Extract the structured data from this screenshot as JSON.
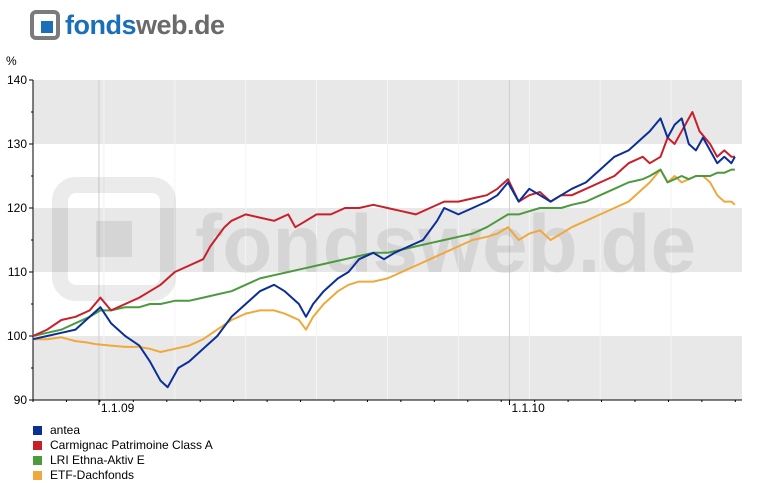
{
  "brand": {
    "fonds": "fonds",
    "web": "web.de"
  },
  "watermark": "fondsweb.de",
  "chart_data": {
    "type": "line",
    "ylabel": "%",
    "ylim": [
      90,
      140
    ],
    "yticks": [
      90,
      100,
      110,
      120,
      130,
      140
    ],
    "xticks": [
      {
        "label": "1.1.09",
        "t": 0.093
      },
      {
        "label": "1.1.10",
        "t": 0.672
      }
    ],
    "grid": true,
    "legend": "bottom-left",
    "series": [
      {
        "name": "antea",
        "color": "#0b2f96",
        "points": [
          [
            0,
            99.5
          ],
          [
            0.02,
            100
          ],
          [
            0.04,
            100.5
          ],
          [
            0.06,
            101
          ],
          [
            0.08,
            103
          ],
          [
            0.095,
            104.5
          ],
          [
            0.11,
            102
          ],
          [
            0.13,
            100
          ],
          [
            0.15,
            98.5
          ],
          [
            0.165,
            96
          ],
          [
            0.18,
            93
          ],
          [
            0.19,
            92
          ],
          [
            0.205,
            95
          ],
          [
            0.22,
            96
          ],
          [
            0.24,
            98
          ],
          [
            0.26,
            100
          ],
          [
            0.28,
            103
          ],
          [
            0.3,
            105
          ],
          [
            0.32,
            107
          ],
          [
            0.34,
            108
          ],
          [
            0.355,
            107
          ],
          [
            0.365,
            106
          ],
          [
            0.375,
            105
          ],
          [
            0.385,
            103
          ],
          [
            0.395,
            105
          ],
          [
            0.41,
            107
          ],
          [
            0.43,
            109
          ],
          [
            0.445,
            110
          ],
          [
            0.46,
            112
          ],
          [
            0.48,
            113
          ],
          [
            0.495,
            112
          ],
          [
            0.51,
            113
          ],
          [
            0.53,
            114
          ],
          [
            0.55,
            115
          ],
          [
            0.57,
            118
          ],
          [
            0.58,
            120
          ],
          [
            0.6,
            119
          ],
          [
            0.62,
            120
          ],
          [
            0.64,
            121
          ],
          [
            0.655,
            122
          ],
          [
            0.67,
            124
          ],
          [
            0.685,
            121
          ],
          [
            0.7,
            123
          ],
          [
            0.715,
            122
          ],
          [
            0.73,
            121
          ],
          [
            0.745,
            122
          ],
          [
            0.76,
            123
          ],
          [
            0.78,
            124
          ],
          [
            0.8,
            126
          ],
          [
            0.82,
            128
          ],
          [
            0.84,
            129
          ],
          [
            0.86,
            131
          ],
          [
            0.87,
            132
          ],
          [
            0.885,
            134
          ],
          [
            0.895,
            131
          ],
          [
            0.905,
            133
          ],
          [
            0.915,
            134
          ],
          [
            0.925,
            130
          ],
          [
            0.935,
            129
          ],
          [
            0.945,
            131
          ],
          [
            0.955,
            129
          ],
          [
            0.965,
            127
          ],
          [
            0.975,
            128
          ],
          [
            0.985,
            127
          ],
          [
            0.99,
            128
          ]
        ]
      },
      {
        "name": "Carmignac Patrimoine Class A",
        "color": "#c8202b",
        "points": [
          [
            0,
            100
          ],
          [
            0.02,
            101
          ],
          [
            0.04,
            102.5
          ],
          [
            0.06,
            103
          ],
          [
            0.08,
            104
          ],
          [
            0.095,
            106
          ],
          [
            0.11,
            104
          ],
          [
            0.13,
            105
          ],
          [
            0.15,
            106
          ],
          [
            0.165,
            107
          ],
          [
            0.18,
            108
          ],
          [
            0.2,
            110
          ],
          [
            0.22,
            111
          ],
          [
            0.24,
            112
          ],
          [
            0.25,
            114
          ],
          [
            0.27,
            117
          ],
          [
            0.28,
            118
          ],
          [
            0.3,
            119
          ],
          [
            0.32,
            118.5
          ],
          [
            0.34,
            118
          ],
          [
            0.36,
            119
          ],
          [
            0.37,
            117
          ],
          [
            0.385,
            118
          ],
          [
            0.4,
            119
          ],
          [
            0.42,
            119
          ],
          [
            0.44,
            120
          ],
          [
            0.46,
            120
          ],
          [
            0.48,
            120.5
          ],
          [
            0.5,
            120
          ],
          [
            0.52,
            119.5
          ],
          [
            0.54,
            119
          ],
          [
            0.56,
            120
          ],
          [
            0.58,
            121
          ],
          [
            0.6,
            121
          ],
          [
            0.62,
            121.5
          ],
          [
            0.64,
            122
          ],
          [
            0.655,
            123
          ],
          [
            0.67,
            124.5
          ],
          [
            0.685,
            121
          ],
          [
            0.7,
            122
          ],
          [
            0.715,
            122.5
          ],
          [
            0.73,
            121
          ],
          [
            0.745,
            122
          ],
          [
            0.76,
            122
          ],
          [
            0.78,
            123
          ],
          [
            0.8,
            124
          ],
          [
            0.82,
            125
          ],
          [
            0.84,
            127
          ],
          [
            0.86,
            128
          ],
          [
            0.87,
            127
          ],
          [
            0.885,
            128
          ],
          [
            0.895,
            131
          ],
          [
            0.905,
            130
          ],
          [
            0.915,
            132
          ],
          [
            0.925,
            134
          ],
          [
            0.93,
            135
          ],
          [
            0.94,
            132
          ],
          [
            0.955,
            130
          ],
          [
            0.965,
            128
          ],
          [
            0.975,
            129
          ],
          [
            0.985,
            128
          ],
          [
            0.99,
            128
          ]
        ]
      },
      {
        "name": "LRI Ethna-Aktiv E",
        "color": "#4c9a3e",
        "points": [
          [
            0,
            100
          ],
          [
            0.02,
            100.5
          ],
          [
            0.04,
            101
          ],
          [
            0.06,
            102
          ],
          [
            0.08,
            103
          ],
          [
            0.095,
            104
          ],
          [
            0.11,
            104
          ],
          [
            0.13,
            104.5
          ],
          [
            0.15,
            104.5
          ],
          [
            0.165,
            105
          ],
          [
            0.18,
            105
          ],
          [
            0.2,
            105.5
          ],
          [
            0.22,
            105.5
          ],
          [
            0.24,
            106
          ],
          [
            0.26,
            106.5
          ],
          [
            0.28,
            107
          ],
          [
            0.3,
            108
          ],
          [
            0.32,
            109
          ],
          [
            0.34,
            109.5
          ],
          [
            0.36,
            110
          ],
          [
            0.38,
            110.5
          ],
          [
            0.4,
            111
          ],
          [
            0.42,
            111.5
          ],
          [
            0.44,
            112
          ],
          [
            0.46,
            112.5
          ],
          [
            0.48,
            113
          ],
          [
            0.5,
            113
          ],
          [
            0.52,
            113.5
          ],
          [
            0.54,
            114
          ],
          [
            0.56,
            114.5
          ],
          [
            0.58,
            115
          ],
          [
            0.6,
            115.5
          ],
          [
            0.62,
            116
          ],
          [
            0.64,
            117
          ],
          [
            0.655,
            118
          ],
          [
            0.67,
            119
          ],
          [
            0.685,
            119
          ],
          [
            0.7,
            119.5
          ],
          [
            0.715,
            120
          ],
          [
            0.73,
            120
          ],
          [
            0.745,
            120
          ],
          [
            0.76,
            120.5
          ],
          [
            0.78,
            121
          ],
          [
            0.8,
            122
          ],
          [
            0.82,
            123
          ],
          [
            0.84,
            124
          ],
          [
            0.86,
            124.5
          ],
          [
            0.87,
            125
          ],
          [
            0.885,
            126
          ],
          [
            0.895,
            124
          ],
          [
            0.905,
            124.5
          ],
          [
            0.915,
            125
          ],
          [
            0.925,
            124.5
          ],
          [
            0.935,
            125
          ],
          [
            0.945,
            125
          ],
          [
            0.955,
            125
          ],
          [
            0.965,
            125.5
          ],
          [
            0.975,
            125.5
          ],
          [
            0.985,
            126
          ],
          [
            0.99,
            126
          ]
        ]
      },
      {
        "name": "ETF-Dachfonds",
        "color": "#f0a83c",
        "points": [
          [
            0,
            99.5
          ],
          [
            0.02,
            99.5
          ],
          [
            0.04,
            99.8
          ],
          [
            0.06,
            99.2
          ],
          [
            0.075,
            99
          ],
          [
            0.09,
            98.7
          ],
          [
            0.11,
            98.5
          ],
          [
            0.13,
            98.3
          ],
          [
            0.15,
            98.3
          ],
          [
            0.165,
            98
          ],
          [
            0.18,
            97.5
          ],
          [
            0.2,
            98
          ],
          [
            0.22,
            98.5
          ],
          [
            0.24,
            99.5
          ],
          [
            0.26,
            101
          ],
          [
            0.28,
            102.5
          ],
          [
            0.3,
            103.5
          ],
          [
            0.32,
            104
          ],
          [
            0.34,
            104
          ],
          [
            0.355,
            103.5
          ],
          [
            0.365,
            103
          ],
          [
            0.375,
            102.5
          ],
          [
            0.385,
            101
          ],
          [
            0.395,
            103
          ],
          [
            0.41,
            105
          ],
          [
            0.43,
            107
          ],
          [
            0.445,
            108
          ],
          [
            0.46,
            108.5
          ],
          [
            0.48,
            108.5
          ],
          [
            0.5,
            109
          ],
          [
            0.52,
            110
          ],
          [
            0.54,
            111
          ],
          [
            0.56,
            112
          ],
          [
            0.58,
            113
          ],
          [
            0.6,
            114
          ],
          [
            0.62,
            115
          ],
          [
            0.64,
            115.5
          ],
          [
            0.655,
            116
          ],
          [
            0.67,
            117
          ],
          [
            0.685,
            115
          ],
          [
            0.7,
            116
          ],
          [
            0.715,
            116.5
          ],
          [
            0.73,
            115
          ],
          [
            0.745,
            116
          ],
          [
            0.76,
            117
          ],
          [
            0.78,
            118
          ],
          [
            0.8,
            119
          ],
          [
            0.82,
            120
          ],
          [
            0.84,
            121
          ],
          [
            0.86,
            123
          ],
          [
            0.87,
            124
          ],
          [
            0.885,
            126
          ],
          [
            0.895,
            124
          ],
          [
            0.905,
            125
          ],
          [
            0.915,
            124
          ],
          [
            0.925,
            124.5
          ],
          [
            0.935,
            125
          ],
          [
            0.945,
            125
          ],
          [
            0.955,
            124
          ],
          [
            0.965,
            122
          ],
          [
            0.975,
            121
          ],
          [
            0.985,
            121
          ],
          [
            0.99,
            120.5
          ]
        ]
      }
    ]
  }
}
